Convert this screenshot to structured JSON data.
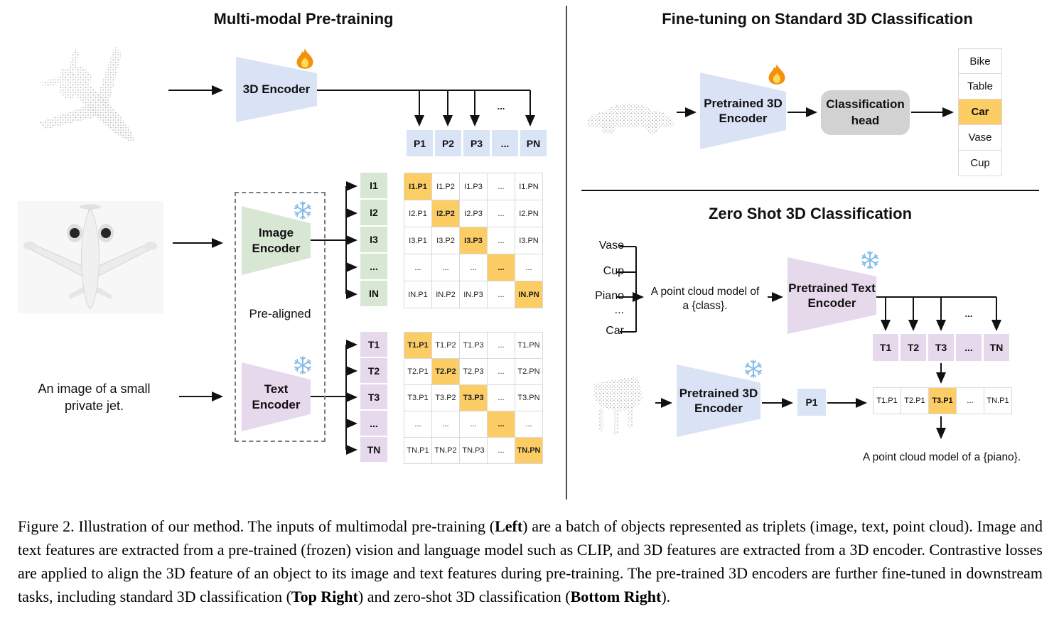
{
  "figure": {
    "left": {
      "title": "Multi-modal Pre-training",
      "encoder3d_label": "3D Encoder",
      "image_encoder_label": "Image\nEncoder",
      "text_encoder_label": "Text\nEncoder",
      "prealigned_label": "Pre-aligned",
      "text_input": "An image of a small\nprivate jet.",
      "p_dots": "...",
      "p_row": [
        "P1",
        "P2",
        "P3",
        "...",
        "PN"
      ],
      "i_col": [
        "I1",
        "I2",
        "I3",
        "...",
        "IN"
      ],
      "t_col": [
        "T1",
        "T2",
        "T3",
        "...",
        "TN"
      ],
      "image_matrix": [
        [
          {
            "t": "I1.P1",
            "hl": true
          },
          {
            "t": "I1.P2"
          },
          {
            "t": "I1.P3"
          },
          {
            "t": "..."
          },
          {
            "t": "I1.PN"
          }
        ],
        [
          {
            "t": "I2.P1"
          },
          {
            "t": "I2.P2",
            "hl": true
          },
          {
            "t": "I2.P3"
          },
          {
            "t": "..."
          },
          {
            "t": "I2.PN"
          }
        ],
        [
          {
            "t": "I3.P1"
          },
          {
            "t": "I3.P2"
          },
          {
            "t": "I3.P3",
            "hl": true
          },
          {
            "t": "..."
          },
          {
            "t": "I3.PN"
          }
        ],
        [
          {
            "t": "..."
          },
          {
            "t": "..."
          },
          {
            "t": "..."
          },
          {
            "t": "...",
            "hl": true
          },
          {
            "t": "..."
          }
        ],
        [
          {
            "t": "IN.P1"
          },
          {
            "t": "IN.P2"
          },
          {
            "t": "IN.P3"
          },
          {
            "t": "..."
          },
          {
            "t": "IN.PN",
            "hl": true
          }
        ]
      ],
      "text_matrix": [
        [
          {
            "t": "T1.P1",
            "hl": true
          },
          {
            "t": "T1.P2"
          },
          {
            "t": "T1.P3"
          },
          {
            "t": "..."
          },
          {
            "t": "T1.PN"
          }
        ],
        [
          {
            "t": "T2.P1"
          },
          {
            "t": "T2.P2",
            "hl": true
          },
          {
            "t": "T2.P3"
          },
          {
            "t": "..."
          },
          {
            "t": "T2.PN"
          }
        ],
        [
          {
            "t": "T3.P1"
          },
          {
            "t": "T3.P2"
          },
          {
            "t": "T3.P3",
            "hl": true
          },
          {
            "t": "..."
          },
          {
            "t": "T3.PN"
          }
        ],
        [
          {
            "t": "..."
          },
          {
            "t": "..."
          },
          {
            "t": "..."
          },
          {
            "t": "...",
            "hl": true
          },
          {
            "t": "..."
          }
        ],
        [
          {
            "t": "TN.P1"
          },
          {
            "t": "TN.P2"
          },
          {
            "t": "TN.P3"
          },
          {
            "t": "..."
          },
          {
            "t": "TN.PN",
            "hl": true
          }
        ]
      ]
    },
    "top_right": {
      "title": "Fine-tuning on Standard 3D Classification",
      "encoder_label": "Pretrained 3D\nEncoder",
      "head_label": "Classification\nhead",
      "classes": [
        {
          "t": "Bike"
        },
        {
          "t": "Table"
        },
        {
          "t": "Car",
          "hl": true
        },
        {
          "t": "Vase"
        },
        {
          "t": "Cup"
        }
      ]
    },
    "bottom_right": {
      "title": "Zero Shot 3D Classification",
      "words": [
        "Vase",
        "Cup",
        "Piano",
        "...",
        "Car"
      ],
      "prompt": "A point cloud model of\na {class}.",
      "text_encoder_label": "Pretrained Text\nEncoder",
      "encoder_label": "Pretrained 3D\nEncoder",
      "p1_label": "P1",
      "t_dots": "...",
      "t_row": [
        "T1",
        "T2",
        "T3",
        "...",
        "TN"
      ],
      "sim_row": [
        {
          "t": "T1.P1"
        },
        {
          "t": "T2.P1"
        },
        {
          "t": "T3.P1",
          "hl": true
        },
        {
          "t": "..."
        },
        {
          "t": "TN.P1"
        }
      ],
      "result": "A point cloud model of a {piano}."
    }
  },
  "caption": {
    "segments": [
      {
        "text": "Figure 2. Illustration of our method. The inputs of multimodal pre-training (",
        "bold": false
      },
      {
        "text": "Left",
        "bold": true
      },
      {
        "text": ") are a batch of objects represented as triplets (image, text, point cloud). Image and text features are extracted from a pre-trained (frozen) vision and language model such as CLIP, and 3D features are extracted from a 3D encoder. Contrastive losses are applied to align the 3D feature of an object to its image and text features during pre-training. The pre-trained 3D encoders are further fine-tuned in downstream tasks, including standard 3D classification (",
        "bold": false
      },
      {
        "text": "Top Right",
        "bold": true
      },
      {
        "text": ") and zero-shot 3D classification (",
        "bold": false
      },
      {
        "text": "Bottom Right",
        "bold": true
      },
      {
        "text": ").",
        "bold": false
      }
    ]
  },
  "colors": {
    "blue": "#d9e3f5",
    "green": "#d8e6d4",
    "purple": "#e5d9eb",
    "highlight": "#fbcd64",
    "head_gray": "#d2d2d2"
  }
}
